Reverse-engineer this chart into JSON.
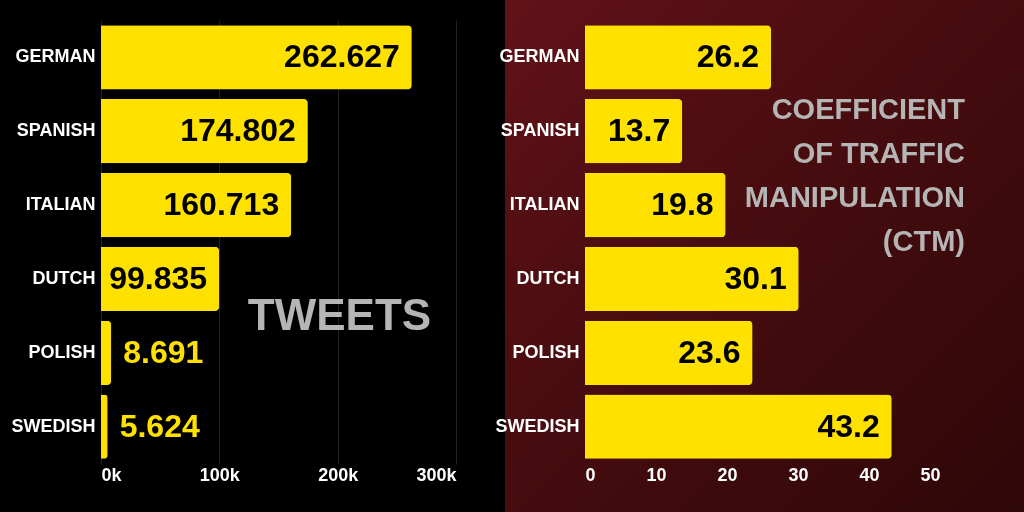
{
  "chart_data": [
    {
      "type": "bar",
      "orientation": "horizontal",
      "title": "TWEETS",
      "categories": [
        "GERMAN",
        "SPANISH",
        "ITALIAN",
        "DUTCH",
        "POLISH",
        "SWEDISH"
      ],
      "values": [
        262.627,
        174.802,
        160.713,
        99.835,
        8.691,
        5.624
      ],
      "color": "#ffe100",
      "xlim": [
        0,
        300
      ],
      "xticks": [
        {
          "value": 0,
          "label": "0k"
        },
        {
          "value": 100,
          "label": "100k"
        },
        {
          "value": 200,
          "label": "200k"
        },
        {
          "value": 300,
          "label": "300k"
        }
      ],
      "grid": "x",
      "data_labels": true
    },
    {
      "type": "bar",
      "orientation": "horizontal",
      "title": "COEFFICIENT OF TRAFFIC MANIPULATION (CTM)",
      "categories": [
        "GERMAN",
        "SPANISH",
        "ITALIAN",
        "DUTCH",
        "POLISH",
        "SWEDISH"
      ],
      "values": [
        26.2,
        13.7,
        19.8,
        30.1,
        23.6,
        43.2
      ],
      "color": "#ffe100",
      "xlim": [
        0,
        50
      ],
      "xticks": [
        0,
        10,
        20,
        30,
        40,
        50
      ],
      "data_labels": true
    }
  ]
}
